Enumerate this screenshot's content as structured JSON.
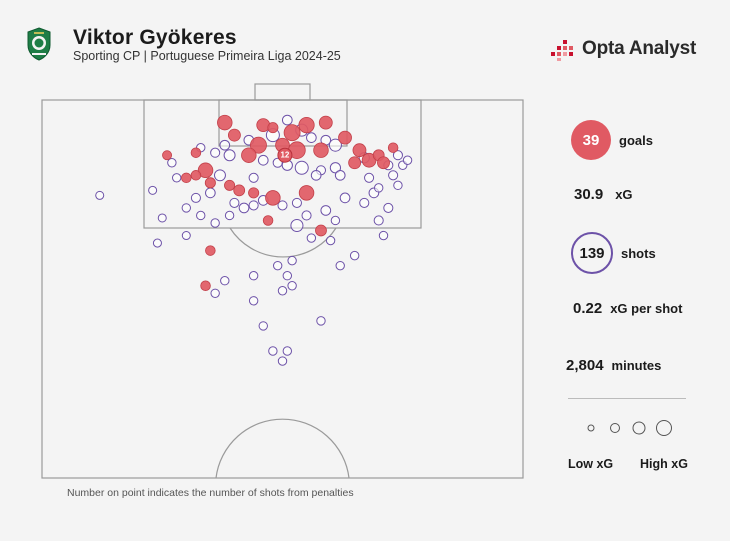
{
  "header": {
    "title": "Viktor Gyökeres",
    "subtitle": "Sporting CP | Portuguese Primeira Liga 2024-25",
    "crest_icon": "sporting-cp-crest-icon",
    "brand": "Opta Analyst",
    "brand_icon": "opta-analyst-logo-icon"
  },
  "colors": {
    "goal": "#e05a63",
    "shot": "#6d52a8",
    "pitch_line": "#9a9a9a"
  },
  "stats": {
    "goals_value": "39",
    "goals_label": "goals",
    "xg_value": "30.9",
    "xg_label": "xG",
    "shots_value": "139",
    "shots_label": "shots",
    "xg_per_shot_value": "0.22",
    "xg_per_shot_label": "xG per shot",
    "minutes_value": "2,804",
    "minutes_label": "minutes"
  },
  "legend": {
    "low_label": "Low xG",
    "high_label": "High xG"
  },
  "footnote": "Number on point indicates the number of shots from penalties",
  "chart_data": {
    "type": "scatter",
    "coordinate_note": "x: 0-100 across pitch width (left to right); y: metres from goal line",
    "penalty_marker": {
      "label": "12",
      "x": 50.5,
      "y": 11
    },
    "goals": [
      {
        "x": 38,
        "y": 4.5,
        "xg": 0.35
      },
      {
        "x": 46,
        "y": 5,
        "xg": 0.25
      },
      {
        "x": 55,
        "y": 5,
        "xg": 0.4
      },
      {
        "x": 59,
        "y": 4.5,
        "xg": 0.25
      },
      {
        "x": 40,
        "y": 7,
        "xg": 0.2
      },
      {
        "x": 52,
        "y": 6.5,
        "xg": 0.45
      },
      {
        "x": 45,
        "y": 9,
        "xg": 0.45
      },
      {
        "x": 50,
        "y": 9,
        "xg": 0.3
      },
      {
        "x": 53,
        "y": 10,
        "xg": 0.5
      },
      {
        "x": 43,
        "y": 11,
        "xg": 0.35
      },
      {
        "x": 58,
        "y": 10,
        "xg": 0.35
      },
      {
        "x": 63,
        "y": 7.5,
        "xg": 0.25
      },
      {
        "x": 66,
        "y": 10,
        "xg": 0.25
      },
      {
        "x": 68,
        "y": 12,
        "xg": 0.3
      },
      {
        "x": 70,
        "y": 11,
        "xg": 0.15
      },
      {
        "x": 71,
        "y": 12.5,
        "xg": 0.2
      },
      {
        "x": 65,
        "y": 12.5,
        "xg": 0.2
      },
      {
        "x": 32,
        "y": 10.5,
        "xg": 0.1
      },
      {
        "x": 34,
        "y": 14,
        "xg": 0.35
      },
      {
        "x": 32,
        "y": 15,
        "xg": 0.1
      },
      {
        "x": 30,
        "y": 15.5,
        "xg": 0.1
      },
      {
        "x": 35,
        "y": 16.5,
        "xg": 0.12
      },
      {
        "x": 41,
        "y": 18,
        "xg": 0.15
      },
      {
        "x": 39,
        "y": 17,
        "xg": 0.12
      },
      {
        "x": 44,
        "y": 18.5,
        "xg": 0.12
      },
      {
        "x": 48,
        "y": 19.5,
        "xg": 0.35
      },
      {
        "x": 55,
        "y": 18.5,
        "xg": 0.35
      },
      {
        "x": 47,
        "y": 24,
        "xg": 0.1
      },
      {
        "x": 58,
        "y": 26,
        "xg": 0.15
      },
      {
        "x": 35,
        "y": 30,
        "xg": 0.1
      },
      {
        "x": 34,
        "y": 37,
        "xg": 0.1
      },
      {
        "x": 73,
        "y": 9.5,
        "xg": 0.1
      },
      {
        "x": 26,
        "y": 11,
        "xg": 0.08
      },
      {
        "x": 48,
        "y": 5.5,
        "xg": 0.12
      }
    ],
    "shots": [
      {
        "x": 51,
        "y": 4,
        "xg": 0.1
      },
      {
        "x": 54,
        "y": 6,
        "xg": 0.2
      },
      {
        "x": 48,
        "y": 7,
        "xg": 0.25
      },
      {
        "x": 56,
        "y": 7.5,
        "xg": 0.1
      },
      {
        "x": 43,
        "y": 8,
        "xg": 0.1
      },
      {
        "x": 59,
        "y": 8,
        "xg": 0.1
      },
      {
        "x": 61,
        "y": 9,
        "xg": 0.2
      },
      {
        "x": 38,
        "y": 9,
        "xg": 0.1
      },
      {
        "x": 33,
        "y": 9.5,
        "xg": 0.06
      },
      {
        "x": 36,
        "y": 10.5,
        "xg": 0.08
      },
      {
        "x": 39,
        "y": 11,
        "xg": 0.15
      },
      {
        "x": 46,
        "y": 12,
        "xg": 0.1
      },
      {
        "x": 49,
        "y": 12.5,
        "xg": 0.08
      },
      {
        "x": 51,
        "y": 13,
        "xg": 0.12
      },
      {
        "x": 54,
        "y": 13.5,
        "xg": 0.25
      },
      {
        "x": 58,
        "y": 14,
        "xg": 0.08
      },
      {
        "x": 61,
        "y": 13.5,
        "xg": 0.12
      },
      {
        "x": 62,
        "y": 15,
        "xg": 0.1
      },
      {
        "x": 67,
        "y": 11.5,
        "xg": 0.12
      },
      {
        "x": 72,
        "y": 13,
        "xg": 0.08
      },
      {
        "x": 74,
        "y": 11,
        "xg": 0.08
      },
      {
        "x": 75,
        "y": 13,
        "xg": 0.06
      },
      {
        "x": 76,
        "y": 12,
        "xg": 0.06
      },
      {
        "x": 73,
        "y": 15,
        "xg": 0.08
      },
      {
        "x": 68,
        "y": 15.5,
        "xg": 0.08
      },
      {
        "x": 69,
        "y": 18.5,
        "xg": 0.1
      },
      {
        "x": 67,
        "y": 20.5,
        "xg": 0.08
      },
      {
        "x": 72,
        "y": 21.5,
        "xg": 0.08
      },
      {
        "x": 70,
        "y": 24,
        "xg": 0.08
      },
      {
        "x": 27,
        "y": 12.5,
        "xg": 0.06
      },
      {
        "x": 28,
        "y": 15.5,
        "xg": 0.06
      },
      {
        "x": 37,
        "y": 15,
        "xg": 0.15
      },
      {
        "x": 35,
        "y": 18.5,
        "xg": 0.1
      },
      {
        "x": 32,
        "y": 19.5,
        "xg": 0.08
      },
      {
        "x": 30,
        "y": 21.5,
        "xg": 0.06
      },
      {
        "x": 33,
        "y": 23,
        "xg": 0.06
      },
      {
        "x": 36,
        "y": 24.5,
        "xg": 0.06
      },
      {
        "x": 39,
        "y": 23,
        "xg": 0.06
      },
      {
        "x": 42,
        "y": 21.5,
        "xg": 0.1
      },
      {
        "x": 44,
        "y": 21,
        "xg": 0.08
      },
      {
        "x": 46,
        "y": 20,
        "xg": 0.1
      },
      {
        "x": 50,
        "y": 21,
        "xg": 0.08
      },
      {
        "x": 53,
        "y": 20.5,
        "xg": 0.08
      },
      {
        "x": 55,
        "y": 23,
        "xg": 0.08
      },
      {
        "x": 53,
        "y": 25,
        "xg": 0.2
      },
      {
        "x": 59,
        "y": 22,
        "xg": 0.1
      },
      {
        "x": 61,
        "y": 24,
        "xg": 0.06
      },
      {
        "x": 60,
        "y": 28,
        "xg": 0.06
      },
      {
        "x": 56,
        "y": 27.5,
        "xg": 0.06
      },
      {
        "x": 52,
        "y": 32,
        "xg": 0.06
      },
      {
        "x": 49,
        "y": 33,
        "xg": 0.06
      },
      {
        "x": 51,
        "y": 35,
        "xg": 0.06
      },
      {
        "x": 44,
        "y": 35,
        "xg": 0.06
      },
      {
        "x": 38,
        "y": 36,
        "xg": 0.06
      },
      {
        "x": 36,
        "y": 38.5,
        "xg": 0.06
      },
      {
        "x": 50,
        "y": 38,
        "xg": 0.06
      },
      {
        "x": 52,
        "y": 37,
        "xg": 0.06
      },
      {
        "x": 44,
        "y": 40,
        "xg": 0.06
      },
      {
        "x": 46,
        "y": 45,
        "xg": 0.06
      },
      {
        "x": 48,
        "y": 50,
        "xg": 0.06
      },
      {
        "x": 51,
        "y": 50,
        "xg": 0.06
      },
      {
        "x": 50,
        "y": 52,
        "xg": 0.06
      },
      {
        "x": 58,
        "y": 44,
        "xg": 0.06
      },
      {
        "x": 23,
        "y": 18,
        "xg": 0.05
      },
      {
        "x": 25,
        "y": 23.5,
        "xg": 0.05
      },
      {
        "x": 24,
        "y": 28.5,
        "xg": 0.05
      },
      {
        "x": 62,
        "y": 33,
        "xg": 0.06
      },
      {
        "x": 65,
        "y": 31,
        "xg": 0.06
      },
      {
        "x": 71,
        "y": 27,
        "xg": 0.06
      },
      {
        "x": 44,
        "y": 15.5,
        "xg": 0.08
      },
      {
        "x": 57,
        "y": 15,
        "xg": 0.1
      },
      {
        "x": 63,
        "y": 19.5,
        "xg": 0.1
      },
      {
        "x": 40,
        "y": 20.5,
        "xg": 0.08
      },
      {
        "x": 12,
        "y": 19,
        "xg": 0.05
      },
      {
        "x": 30,
        "y": 27,
        "xg": 0.05
      },
      {
        "x": 70,
        "y": 17.5,
        "xg": 0.06
      },
      {
        "x": 74,
        "y": 17,
        "xg": 0.06
      }
    ]
  }
}
